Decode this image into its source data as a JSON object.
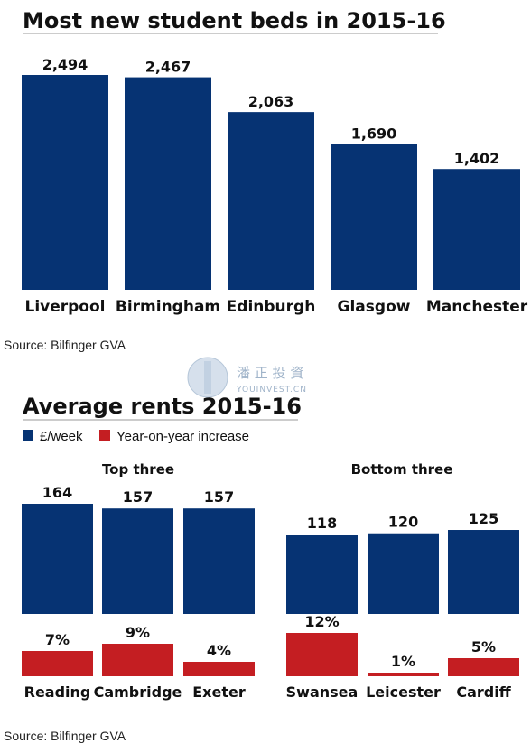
{
  "colors": {
    "blue": "#063373",
    "red": "#c41e22",
    "rule": "#999999"
  },
  "watermark": {
    "cn": "潘 正 投 資",
    "en": "YOUINVEST.CN"
  },
  "chart_data": [
    {
      "type": "bar",
      "title": "Most new student beds in 2015-16",
      "categories": [
        "Liverpool",
        "Birmingham",
        "Edinburgh",
        "Glasgow",
        "Manchester"
      ],
      "values": [
        2494,
        2467,
        2063,
        1690,
        1402
      ],
      "value_labels": [
        "2,494",
        "2,467",
        "2,063",
        "1,690",
        "1,402"
      ],
      "source": "Source: Bilfinger GVA"
    },
    {
      "type": "bar",
      "title": "Average rents 2015-16",
      "legend": [
        "£/week",
        "Year-on-year increase"
      ],
      "groups": [
        {
          "name": "Top three",
          "categories": [
            "Reading",
            "Cambridge",
            "Exeter"
          ],
          "series": [
            {
              "name": "£/week",
              "values": [
                164,
                157,
                157
              ],
              "labels": [
                "164",
                "157",
                "157"
              ]
            },
            {
              "name": "Year-on-year increase",
              "values": [
                7,
                9,
                4
              ],
              "labels": [
                "7%",
                "9%",
                "4%"
              ]
            }
          ]
        },
        {
          "name": "Bottom three",
          "categories": [
            "Swansea",
            "Leicester",
            "Cardiff"
          ],
          "series": [
            {
              "name": "£/week",
              "values": [
                118,
                120,
                125
              ],
              "labels": [
                "118",
                "120",
                "125"
              ]
            },
            {
              "name": "Year-on-year increase",
              "values": [
                12,
                1,
                5
              ],
              "labels": [
                "12%",
                "1%",
                "5%"
              ]
            }
          ]
        }
      ],
      "source": "Source: Bilfinger GVA"
    }
  ]
}
